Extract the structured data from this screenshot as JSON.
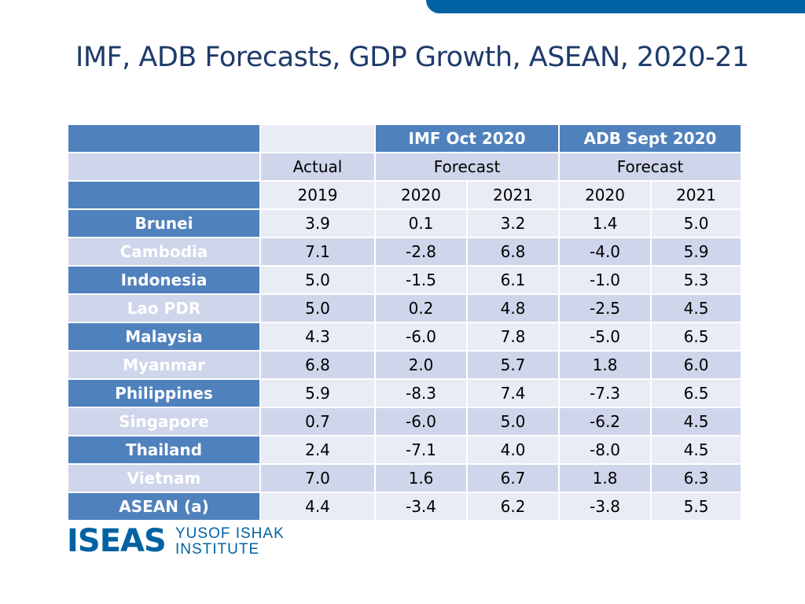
{
  "slide": {
    "title": "IMF, ADB Forecasts, GDP Growth, ASEAN, 2020-21"
  },
  "table": {
    "header": {
      "imf_label": "IMF Oct 2020",
      "adb_label": "ADB Sept 2020",
      "actual_label": "Actual",
      "imf_forecast_label": "Forecast",
      "adb_forecast_label": "Forecast",
      "years": [
        "2019",
        "2020",
        "2021",
        "2020",
        "2021"
      ]
    },
    "rows": [
      {
        "country": "Brunei",
        "values": [
          "3.9",
          "0.1",
          "3.2",
          "1.4",
          "5.0"
        ]
      },
      {
        "country": "Cambodia",
        "values": [
          "7.1",
          "-2.8",
          "6.8",
          "-4.0",
          "5.9"
        ]
      },
      {
        "country": "Indonesia",
        "values": [
          "5.0",
          "-1.5",
          "6.1",
          "-1.0",
          "5.3"
        ]
      },
      {
        "country": "Lao PDR",
        "values": [
          "5.0",
          "0.2",
          "4.8",
          "-2.5",
          "4.5"
        ]
      },
      {
        "country": "Malaysia",
        "values": [
          "4.3",
          "-6.0",
          "7.8",
          "-5.0",
          "6.5"
        ]
      },
      {
        "country": "Myanmar",
        "values": [
          "6.8",
          "2.0",
          "5.7",
          "1.8",
          "6.0"
        ]
      },
      {
        "country": "Philippines",
        "values": [
          "5.9",
          "-8.3",
          "7.4",
          "-7.3",
          "6.5"
        ]
      },
      {
        "country": "Singapore",
        "values": [
          "0.7",
          "-6.0",
          "5.0",
          "-6.2",
          "4.5"
        ]
      },
      {
        "country": "Thailand",
        "values": [
          "2.4",
          "-7.1",
          "4.0",
          "-8.0",
          "4.5"
        ]
      },
      {
        "country": "Vietnam",
        "values": [
          "7.0",
          "1.6",
          "6.7",
          "1.8",
          "6.3"
        ]
      },
      {
        "country": "ASEAN (a)",
        "values": [
          "4.4",
          "-3.4",
          "6.2",
          "-3.8",
          "5.5"
        ]
      }
    ]
  },
  "logo": {
    "mark": "ISEAS",
    "line1": "YUSOF ISHAK",
    "line2": "INSTITUTE"
  },
  "colors": {
    "accent": "#0062a3",
    "header_fill": "#4f81bd",
    "row_light": "#e9ebf5",
    "row_dark": "#cfd5ea",
    "title": "#1f3b6b"
  }
}
